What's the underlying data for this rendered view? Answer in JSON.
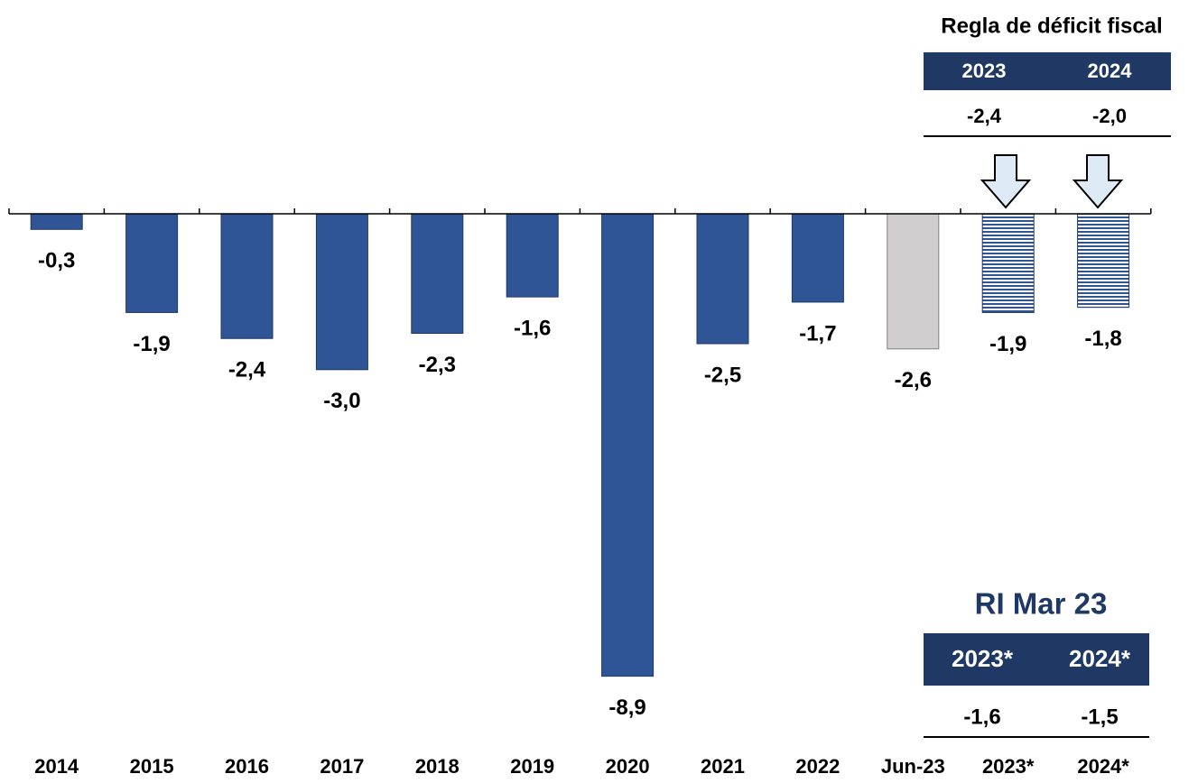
{
  "chart_data": {
    "type": "bar",
    "categories": [
      "2014",
      "2015",
      "2016",
      "2017",
      "2018",
      "2019",
      "2020",
      "2021",
      "2022",
      "Jun-23",
      "2023*",
      "2024*"
    ],
    "values": [
      -0.3,
      -1.9,
      -2.4,
      -3.0,
      -2.3,
      -1.6,
      -8.9,
      -2.5,
      -1.7,
      -2.6,
      -1.9,
      -1.8
    ],
    "value_labels": [
      "-0,3",
      "-1,9",
      "-2,4",
      "-3,0",
      "-2,3",
      "-1,6",
      "-8,9",
      "-2,5",
      "-1,7",
      "-2,6",
      "-1,9",
      "-1,8"
    ],
    "colors": [
      "#2F5597",
      "#2F5597",
      "#2F5597",
      "#2F5597",
      "#2F5597",
      "#2F5597",
      "#2F5597",
      "#2F5597",
      "#2F5597",
      "#D0CECE",
      "#2F5597",
      "#2F5597"
    ],
    "styles": [
      "solid",
      "solid",
      "solid",
      "solid",
      "solid",
      "solid",
      "solid",
      "solid",
      "solid",
      "solid",
      "hatched",
      "hatched"
    ],
    "rule_table": {
      "title": "Regla de déficit fiscal",
      "headers": [
        "2023",
        "2024"
      ],
      "values": [
        "-2,4",
        "-2,0"
      ]
    },
    "ri_table": {
      "title": "RI Mar 23",
      "headers": [
        "2023*",
        "2024*"
      ],
      "values": [
        "-1,6",
        "-1,5"
      ]
    }
  }
}
